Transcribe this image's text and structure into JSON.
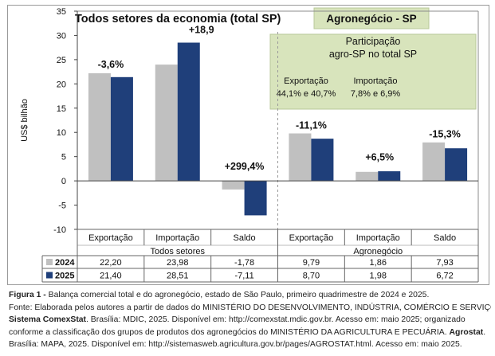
{
  "chart_data": {
    "type": "bar",
    "ylabel": "US$ bilhão",
    "ylim": [
      -10,
      35
    ],
    "yticks": [
      35,
      30,
      25,
      20,
      15,
      10,
      5,
      0,
      -5,
      -10
    ],
    "grid": false,
    "left_panel_title": "Todos setores da economia (total SP)",
    "right_panel_title": "Agronegócio - SP",
    "categories": [
      "Exportação",
      "Importação",
      "Saldo",
      "Exportação",
      "Importação",
      "Saldo"
    ],
    "groups": [
      {
        "label": "Todos setores",
        "categories": [
          0,
          1,
          2
        ]
      },
      {
        "label": "Agronegócio",
        "categories": [
          3,
          4,
          5
        ]
      }
    ],
    "series": [
      {
        "name": "2024",
        "color": "#c0c0c0",
        "values": [
          22.2,
          23.98,
          -1.78,
          9.79,
          1.86,
          7.93
        ],
        "labels": [
          "22,20",
          "23,98",
          "-1,78",
          "9,79",
          "1,86",
          "7,93"
        ]
      },
      {
        "name": "2025",
        "color": "#1f3f7a",
        "values": [
          21.4,
          28.51,
          -7.11,
          8.7,
          1.98,
          6.72
        ],
        "labels": [
          "21,40",
          "28,51",
          "-7,11",
          "8,70",
          "1,98",
          "6,72"
        ]
      }
    ],
    "change_labels": [
      "-3,6%",
      "+18,9",
      "+299,4%",
      "-11,1%",
      "+6,5%",
      "-15,3%"
    ],
    "participation": {
      "title_line1": "Participação",
      "title_line2": "agro-SP no total SP",
      "export_label": "Exportação",
      "export_value": "44,1% e 40,7%",
      "import_label": "Importação",
      "import_value": "7,8% e 6,9%",
      "fill": "#d8e4bc"
    }
  },
  "caption": {
    "figure_label": "Figura 1 -",
    "figure_text": " Balança comercial total e do agronegócio, estado de São Paulo, primeiro quadrimestre de 2024 e 2025.",
    "line2": "Fonte: Elaborada pelos autores a partir de dados do MINISTÉRIO DO DESENVOLVIMENTO, INDÚSTRIA, COMÉRCIO E SERVIÇOS.",
    "line3_bold": "Sistema ComexStat",
    "line3_text": ". Brasília: MDIC, 2025. Disponível em: http://comexstat.mdic.gov.br. Acesso em: maio 2025; organizado",
    "line4_text": "conforme a classificação dos grupos de produtos dos agronegócios do MINISTÉRIO DA AGRICULTURA E PECUÁRIA. ",
    "line4_bold": "Agrostat",
    "line4_end": ".",
    "line5": "Brasília: MAPA, 2025. Disponível em: http://sistemasweb.agricultura.gov.br/pages/AGROSTAT.html. Acesso em: maio 2025."
  }
}
